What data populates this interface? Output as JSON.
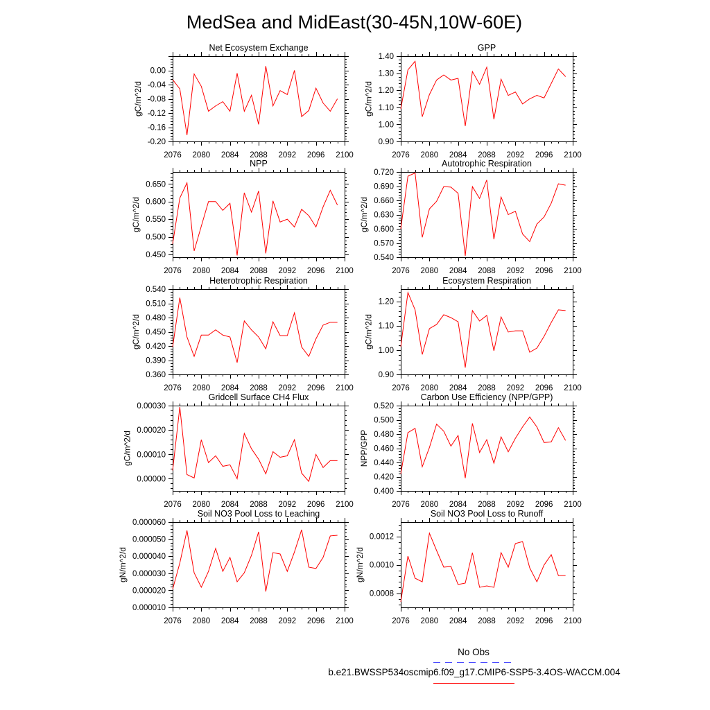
{
  "title": "MedSea and MidEast(30-45N,10W-60E)",
  "legend": {
    "entries": [
      {
        "label": "No Obs",
        "color": "#4b4bff",
        "style": "dashed"
      },
      {
        "label": "b.e21.BWSSP534oscmip6.f09_g17.CMIP6-SSP5-3.4OS-WACCM.004",
        "color": "#ff0000",
        "style": "solid"
      }
    ]
  },
  "chart_data": [
    {
      "type": "line",
      "title": "Net Ecosystem Exchange",
      "ylabel": "gC/m^2/d",
      "xlim": [
        2076,
        2100
      ],
      "xticks": [
        2076,
        2080,
        2084,
        2088,
        2092,
        2096,
        2100
      ],
      "ylim": [
        -0.2,
        0.04
      ],
      "yticks": [
        0,
        -0.04,
        -0.08,
        -0.12,
        -0.16,
        -0.2
      ],
      "ytick_labels": [
        "0.00",
        "-0.04",
        "-0.08",
        "-0.12",
        "-0.16",
        "-0.20"
      ],
      "x": [
        2076,
        2077,
        2078,
        2079,
        2080,
        2081,
        2082,
        2083,
        2084,
        2085,
        2086,
        2087,
        2088,
        2089,
        2090,
        2091,
        2092,
        2093,
        2094,
        2095,
        2096,
        2097,
        2098,
        2099
      ],
      "series": [
        {
          "color": "#ff0000",
          "values": [
            -0.026,
            -0.052,
            -0.182,
            -0.01,
            -0.045,
            -0.115,
            -0.1,
            -0.088,
            -0.115,
            -0.008,
            -0.115,
            -0.07,
            -0.152,
            0.012,
            -0.1,
            -0.057,
            -0.068,
            0.0,
            -0.13,
            -0.113,
            -0.05,
            -0.092,
            -0.115,
            -0.08
          ]
        }
      ]
    },
    {
      "type": "line",
      "title": "GPP",
      "ylabel": "gC/m^2/d",
      "xlim": [
        2076,
        2100
      ],
      "xticks": [
        2076,
        2080,
        2084,
        2088,
        2092,
        2096,
        2100
      ],
      "ylim": [
        0.9,
        1.4
      ],
      "yticks": [
        1.4,
        1.3,
        1.2,
        1.1,
        1.0,
        0.9
      ],
      "ytick_labels": [
        "1.40",
        "1.30",
        "1.20",
        "1.10",
        "1.00",
        "0.90"
      ],
      "x": [
        2076,
        2077,
        2078,
        2079,
        2080,
        2081,
        2082,
        2083,
        2084,
        2085,
        2086,
        2087,
        2088,
        2089,
        2090,
        2091,
        2092,
        2093,
        2094,
        2095,
        2096,
        2097,
        2098,
        2099
      ],
      "series": [
        {
          "color": "#ff0000",
          "values": [
            1.09,
            1.32,
            1.37,
            1.045,
            1.175,
            1.26,
            1.29,
            1.26,
            1.27,
            0.99,
            1.31,
            1.235,
            1.335,
            1.03,
            1.265,
            1.17,
            1.19,
            1.12,
            1.15,
            1.17,
            1.155,
            1.24,
            1.325,
            1.28
          ]
        }
      ]
    },
    {
      "type": "line",
      "title": "NPP",
      "ylabel": "gC/m^2/d",
      "xlim": [
        2076,
        2100
      ],
      "xticks": [
        2076,
        2080,
        2084,
        2088,
        2092,
        2096,
        2100
      ],
      "ylim": [
        0.442,
        0.684
      ],
      "yticks": [
        0.65,
        0.6,
        0.55,
        0.5,
        0.45
      ],
      "ytick_labels": [
        "0.650",
        "0.600",
        "0.550",
        "0.500",
        "0.450"
      ],
      "x": [
        2076,
        2077,
        2078,
        2079,
        2080,
        2081,
        2082,
        2083,
        2084,
        2085,
        2086,
        2087,
        2088,
        2089,
        2090,
        2091,
        2092,
        2093,
        2094,
        2095,
        2096,
        2097,
        2098,
        2099
      ],
      "series": [
        {
          "color": "#ff0000",
          "values": [
            0.48,
            0.61,
            0.653,
            0.46,
            0.53,
            0.6,
            0.6,
            0.575,
            0.595,
            0.447,
            0.625,
            0.57,
            0.63,
            0.453,
            0.602,
            0.542,
            0.55,
            0.528,
            0.578,
            0.56,
            0.528,
            0.585,
            0.632,
            0.59
          ]
        }
      ]
    },
    {
      "type": "line",
      "title": "Autotrophic Respiration",
      "ylabel": "gC/m^2/d",
      "xlim": [
        2076,
        2100
      ],
      "xticks": [
        2076,
        2080,
        2084,
        2088,
        2092,
        2096,
        2100
      ],
      "ylim": [
        0.54,
        0.72
      ],
      "yticks": [
        0.72,
        0.69,
        0.66,
        0.63,
        0.6,
        0.57,
        0.54
      ],
      "ytick_labels": [
        "0.720",
        "0.690",
        "0.660",
        "0.630",
        "0.600",
        "0.570",
        "0.540"
      ],
      "x": [
        2076,
        2077,
        2078,
        2079,
        2080,
        2081,
        2082,
        2083,
        2084,
        2085,
        2086,
        2087,
        2088,
        2089,
        2090,
        2091,
        2092,
        2093,
        2094,
        2095,
        2096,
        2097,
        2098,
        2099
      ],
      "series": [
        {
          "color": "#ff0000",
          "values": [
            0.6,
            0.711,
            0.718,
            0.582,
            0.642,
            0.658,
            0.689,
            0.688,
            0.675,
            0.543,
            0.689,
            0.664,
            0.703,
            0.578,
            0.667,
            0.63,
            0.637,
            0.589,
            0.573,
            0.61,
            0.625,
            0.654,
            0.695,
            0.692
          ]
        }
      ]
    },
    {
      "type": "line",
      "title": "Heterotrophic Respiration",
      "ylabel": "gC/m^2/d",
      "xlim": [
        2076,
        2100
      ],
      "xticks": [
        2076,
        2080,
        2084,
        2088,
        2092,
        2096,
        2100
      ],
      "ylim": [
        0.36,
        0.54
      ],
      "yticks": [
        0.54,
        0.51,
        0.48,
        0.45,
        0.42,
        0.39,
        0.36
      ],
      "ytick_labels": [
        "0.540",
        "0.510",
        "0.480",
        "0.450",
        "0.420",
        "0.390",
        "0.360"
      ],
      "x": [
        2076,
        2077,
        2078,
        2079,
        2080,
        2081,
        2082,
        2083,
        2084,
        2085,
        2086,
        2087,
        2088,
        2089,
        2090,
        2091,
        2092,
        2093,
        2094,
        2095,
        2096,
        2097,
        2098,
        2099
      ],
      "series": [
        {
          "color": "#ff0000",
          "values": [
            0.418,
            0.522,
            0.439,
            0.398,
            0.443,
            0.443,
            0.454,
            0.443,
            0.439,
            0.385,
            0.473,
            0.454,
            0.439,
            0.414,
            0.471,
            0.442,
            0.442,
            0.49,
            0.418,
            0.398,
            0.435,
            0.464,
            0.47,
            0.47
          ]
        }
      ]
    },
    {
      "type": "line",
      "title": "Ecosystem Respiration",
      "ylabel": "gC/m^2/d",
      "xlim": [
        2076,
        2100
      ],
      "xticks": [
        2076,
        2080,
        2084,
        2088,
        2092,
        2096,
        2100
      ],
      "ylim": [
        0.9,
        1.25
      ],
      "yticks": [
        1.2,
        1.1,
        1.0,
        0.9
      ],
      "ytick_labels": [
        "1.20",
        "1.10",
        "1.00",
        "0.90"
      ],
      "x": [
        2076,
        2077,
        2078,
        2079,
        2080,
        2081,
        2082,
        2083,
        2084,
        2085,
        2086,
        2087,
        2088,
        2089,
        2090,
        2091,
        2092,
        2093,
        2094,
        2095,
        2096,
        2097,
        2098,
        2099
      ],
      "series": [
        {
          "color": "#ff0000",
          "values": [
            1.014,
            1.236,
            1.165,
            0.982,
            1.088,
            1.105,
            1.145,
            1.133,
            1.116,
            0.928,
            1.162,
            1.119,
            1.142,
            0.997,
            1.136,
            1.074,
            1.079,
            1.079,
            0.991,
            1.008,
            1.056,
            1.113,
            1.165,
            1.162
          ]
        }
      ]
    },
    {
      "type": "line",
      "title": "Gridcell Surface CH4 Flux",
      "ylabel": "gC/m^2/d",
      "xlim": [
        2076,
        2100
      ],
      "xticks": [
        2076,
        2080,
        2084,
        2088,
        2092,
        2096,
        2100
      ],
      "ylim": [
        -5e-05,
        0.0003
      ],
      "yticks": [
        0.0003,
        0.0002,
        0.0001,
        0
      ],
      "ytick_labels": [
        "0.00030",
        "0.00020",
        "0.00010",
        "0.00000"
      ],
      "x": [
        2076,
        2077,
        2078,
        2079,
        2080,
        2081,
        2082,
        2083,
        2084,
        2085,
        2086,
        2087,
        2088,
        2089,
        2090,
        2091,
        2092,
        2093,
        2094,
        2095,
        2096,
        2097,
        2098,
        2099
      ],
      "series": [
        {
          "color": "#ff0000",
          "values": [
            3.4e-05,
            0.000294,
            1.7e-05,
            3e-06,
            0.00016,
            6.6e-05,
            9.4e-05,
            5.1e-05,
            5.7e-05,
            0,
            0.000186,
            0.000123,
            8e-05,
            2e-05,
            0.000111,
            8.8e-05,
            9.4e-05,
            0.00016,
            2.3e-05,
            -1.1e-05,
            0.0001,
            4.6e-05,
            7.4e-05,
            7.4e-05
          ]
        }
      ]
    },
    {
      "type": "line",
      "title": "Carbon Use Efficiency (NPP/GPP)",
      "ylabel": "NPP/GPP",
      "xlim": [
        2076,
        2100
      ],
      "xticks": [
        2076,
        2080,
        2084,
        2088,
        2092,
        2096,
        2100
      ],
      "ylim": [
        0.4,
        0.52
      ],
      "yticks": [
        0.52,
        0.5,
        0.48,
        0.46,
        0.44,
        0.42,
        0.4
      ],
      "ytick_labels": [
        "0.520",
        "0.500",
        "0.480",
        "0.460",
        "0.440",
        "0.420",
        "0.400"
      ],
      "x": [
        2076,
        2077,
        2078,
        2079,
        2080,
        2081,
        2082,
        2083,
        2084,
        2085,
        2086,
        2087,
        2088,
        2089,
        2090,
        2091,
        2092,
        2093,
        2094,
        2095,
        2096,
        2097,
        2098,
        2099
      ],
      "series": [
        {
          "color": "#ff0000",
          "values": [
            0.424,
            0.482,
            0.488,
            0.434,
            0.461,
            0.494,
            0.484,
            0.463,
            0.478,
            0.418,
            0.495,
            0.454,
            0.472,
            0.439,
            0.476,
            0.455,
            0.474,
            0.49,
            0.504,
            0.49,
            0.468,
            0.469,
            0.489,
            0.471
          ]
        }
      ]
    },
    {
      "type": "line",
      "title": "Soil NO3 Pool Loss to Leaching",
      "ylabel": "gN/m^2/d",
      "xlim": [
        2076,
        2100
      ],
      "xticks": [
        2076,
        2080,
        2084,
        2088,
        2092,
        2096,
        2100
      ],
      "ylim": [
        1e-05,
        6e-05
      ],
      "yticks": [
        6e-05,
        5e-05,
        4e-05,
        3e-05,
        2e-05,
        1e-05
      ],
      "ytick_labels": [
        "0.000060",
        "0.000050",
        "0.000040",
        "0.000030",
        "0.000020",
        "0.000010"
      ],
      "x": [
        2076,
        2077,
        2078,
        2079,
        2080,
        2081,
        2082,
        2083,
        2084,
        2085,
        2086,
        2087,
        2088,
        2089,
        2090,
        2091,
        2092,
        2093,
        2094,
        2095,
        2096,
        2097,
        2098,
        2099
      ],
      "series": [
        {
          "color": "#ff0000",
          "values": [
            2.06e-05,
            3.6e-05,
            5.51e-05,
            3.03e-05,
            2.18e-05,
            3.11e-05,
            4.46e-05,
            3.11e-05,
            3.93e-05,
            2.5e-05,
            3.03e-05,
            4.05e-05,
            5.43e-05,
            1.93e-05,
            4.21e-05,
            4.13e-05,
            3.11e-05,
            4.25e-05,
            5.55e-05,
            3.36e-05,
            3.28e-05,
            3.93e-05,
            5.19e-05,
            5.23e-05
          ]
        }
      ]
    },
    {
      "type": "line",
      "title": "Soil NO3 Pool Loss to Runoff",
      "ylabel": "gN/m^2/d",
      "xlim": [
        2076,
        2100
      ],
      "xticks": [
        2076,
        2080,
        2084,
        2088,
        2092,
        2096,
        2100
      ],
      "ylim": [
        0.0007,
        0.0013
      ],
      "yticks": [
        0.0012,
        0.001,
        0.0008
      ],
      "ytick_labels": [
        "0.0012",
        "0.0010",
        "0.0008"
      ],
      "x": [
        2076,
        2077,
        2078,
        2079,
        2080,
        2081,
        2082,
        2083,
        2084,
        2085,
        2086,
        2087,
        2088,
        2089,
        2090,
        2091,
        2092,
        2093,
        2094,
        2095,
        2096,
        2097,
        2098,
        2099
      ],
      "series": [
        {
          "color": "#ff0000",
          "values": [
            0.000739,
            0.001061,
            0.000905,
            0.00088,
            0.001222,
            0.0011,
            0.000983,
            0.000988,
            0.000861,
            0.000871,
            0.001085,
            0.000841,
            0.000851,
            0.000841,
            0.001085,
            0.000983,
            0.001149,
            0.001163,
            0.000978,
            0.00088,
            0.000998,
            0.001071,
            0.000924,
            0.000924
          ]
        }
      ]
    }
  ]
}
